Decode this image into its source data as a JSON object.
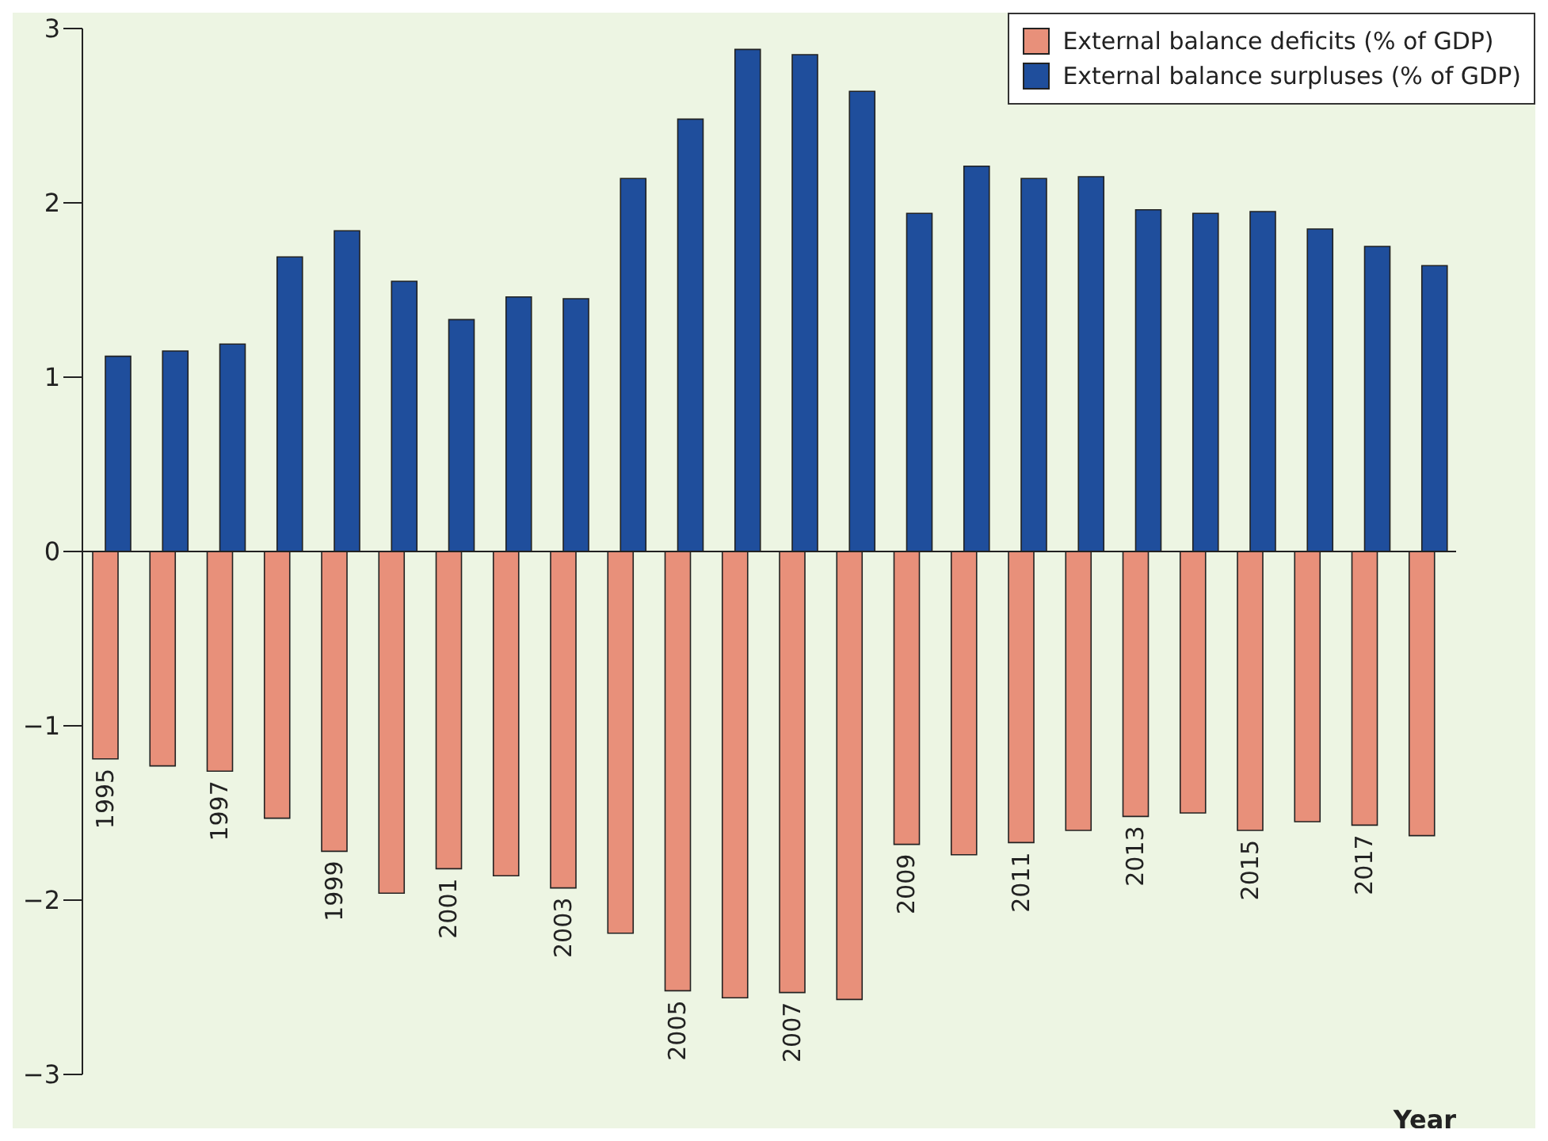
{
  "chart_data": {
    "type": "bar",
    "xlabel": "Year",
    "categories": [
      "1995",
      null,
      "1997",
      null,
      "1999",
      null,
      "2001",
      null,
      "2003",
      null,
      "2005",
      null,
      "2007",
      null,
      "2009",
      null,
      "2011",
      null,
      "2013",
      null,
      "2015",
      null,
      "2017",
      null
    ],
    "series": [
      {
        "name": "External balance deficits (% of GDP)",
        "color": "#e8907a",
        "values": [
          -1.19,
          -1.23,
          -1.26,
          -1.53,
          -1.72,
          -1.96,
          -1.82,
          -1.86,
          -1.93,
          -2.19,
          -2.52,
          -2.56,
          -2.53,
          -2.57,
          -1.68,
          -1.74,
          -1.67,
          -1.6,
          -1.52,
          -1.5,
          -1.6,
          -1.55,
          -1.57,
          -1.63
        ]
      },
      {
        "name": "External balance surpluses (% of GDP)",
        "color": "#1f4e9c",
        "values": [
          1.12,
          1.15,
          1.19,
          1.69,
          1.84,
          1.55,
          1.33,
          1.46,
          1.45,
          2.14,
          2.48,
          2.88,
          2.85,
          2.64,
          1.94,
          2.21,
          2.14,
          2.15,
          1.96,
          1.94,
          1.95,
          1.85,
          1.75,
          1.64
        ]
      }
    ],
    "ylim": [
      -3,
      3
    ],
    "yticks": [
      {
        "value": -3,
        "label": "−3"
      },
      {
        "value": -2,
        "label": "−2"
      },
      {
        "value": -1,
        "label": "−1"
      },
      0,
      1,
      2,
      3
    ],
    "grid": false,
    "legend": "top right",
    "ref_lines": [
      {
        "axis": "y",
        "value": 0,
        "color": "#222222"
      }
    ]
  }
}
